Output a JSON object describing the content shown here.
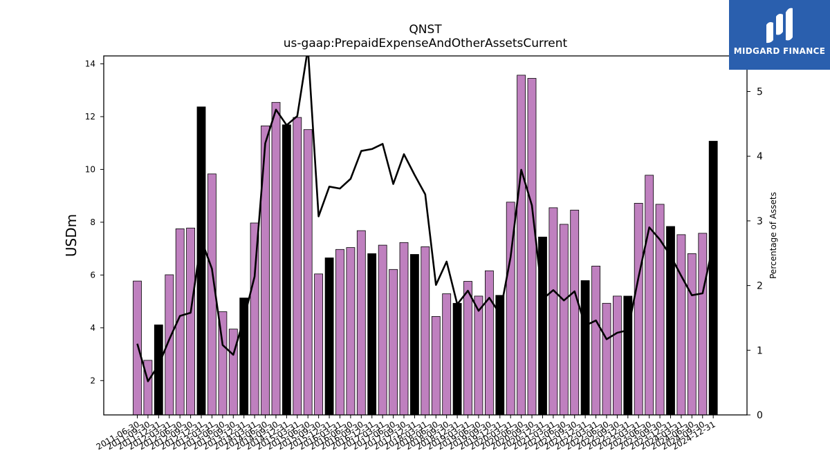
{
  "chart_data": {
    "type": "bar",
    "title": "QNST",
    "subtitle": "us-gaap:PrepaidExpenseAndOtherAssetsCurrent",
    "ylabel": "USDm",
    "y2label": "Percentage of Assets",
    "ylim": [
      0.7,
      14.3
    ],
    "y2lim": [
      0,
      5.55
    ],
    "yticks": [
      2,
      4,
      6,
      8,
      10,
      12,
      14
    ],
    "y2ticks": [
      0,
      1,
      2,
      3,
      4,
      5
    ],
    "grid": false,
    "colors": {
      "bar": "#bf80bf",
      "bar_highlight": "#000000",
      "line": "#000000"
    },
    "categories": [
      "2011-06-30",
      "2011-09-30",
      "2011-12-31",
      "2012-03-31",
      "2012-06-30",
      "2012-09-30",
      "2012-12-31",
      "2013-03-31",
      "2013-06-30",
      "2013-09-30",
      "2013-12-31",
      "2014-03-31",
      "2014-06-30",
      "2014-09-30",
      "2014-12-31",
      "2015-03-31",
      "2015-06-30",
      "2015-09-30",
      "2015-12-31",
      "2016-03-31",
      "2016-06-30",
      "2016-09-30",
      "2016-12-31",
      "2017-03-31",
      "2017-06-30",
      "2017-09-30",
      "2017-12-31",
      "2018-03-31",
      "2018-06-30",
      "2018-09-30",
      "2018-12-31",
      "2019-03-31",
      "2019-06-30",
      "2019-09-30",
      "2019-12-31",
      "2020-03-31",
      "2020-06-30",
      "2020-09-30",
      "2020-12-31",
      "2021-03-31",
      "2021-06-30",
      "2021-09-30",
      "2021-12-31",
      "2022-03-31",
      "2022-06-30",
      "2022-09-30",
      "2022-12-31",
      "2023-03-31",
      "2023-06-30",
      "2023-09-30",
      "2023-12-31",
      "2024-03-31",
      "2024-06-30",
      "2024-09-30",
      "2024-12-31"
    ],
    "highlight": [
      false,
      false,
      true,
      false,
      false,
      false,
      true,
      false,
      false,
      false,
      true,
      false,
      false,
      false,
      true,
      false,
      false,
      false,
      true,
      false,
      false,
      false,
      true,
      false,
      false,
      false,
      true,
      false,
      false,
      false,
      true,
      false,
      false,
      false,
      true,
      false,
      false,
      false,
      true,
      false,
      false,
      false,
      true,
      false,
      false,
      false,
      true,
      false,
      false,
      false,
      true,
      false,
      false,
      false,
      true
    ],
    "series": [
      {
        "type": "bar",
        "axis": "left",
        "values": [
          5.77,
          2.77,
          4.11,
          6.01,
          7.75,
          7.78,
          12.37,
          9.83,
          4.61,
          3.95,
          5.13,
          7.97,
          11.65,
          12.54,
          11.69,
          11.97,
          11.51,
          6.04,
          6.65,
          6.97,
          7.04,
          7.68,
          6.81,
          7.13,
          6.21,
          7.23,
          6.78,
          7.07,
          4.43,
          5.29,
          4.93,
          5.76,
          5.2,
          6.16,
          5.23,
          8.76,
          13.57,
          13.45,
          7.44,
          8.55,
          7.92,
          8.46,
          5.79,
          6.34,
          4.93,
          5.2,
          5.2,
          8.72,
          9.78,
          8.68,
          7.84,
          7.53,
          6.81,
          7.58,
          11.07
        ]
      },
      {
        "type": "line",
        "axis": "right",
        "values": [
          1.1,
          0.52,
          0.77,
          1.17,
          1.53,
          1.58,
          2.71,
          2.26,
          1.08,
          0.93,
          1.49,
          2.14,
          4.2,
          4.72,
          4.48,
          4.62,
          5.67,
          3.07,
          3.53,
          3.5,
          3.65,
          4.08,
          4.11,
          4.19,
          3.57,
          4.03,
          3.71,
          3.41,
          2.01,
          2.37,
          1.71,
          1.92,
          1.61,
          1.81,
          1.56,
          2.44,
          3.79,
          3.24,
          1.79,
          1.93,
          1.77,
          1.91,
          1.38,
          1.46,
          1.17,
          1.27,
          1.31,
          2.13,
          2.9,
          2.71,
          2.46,
          2.15,
          1.85,
          1.88,
          2.64
        ]
      }
    ]
  },
  "logo": {
    "text": "MIDGARD FINANCE",
    "colors": {
      "background": "#2a5fae",
      "foreground": "#ffffff"
    }
  }
}
